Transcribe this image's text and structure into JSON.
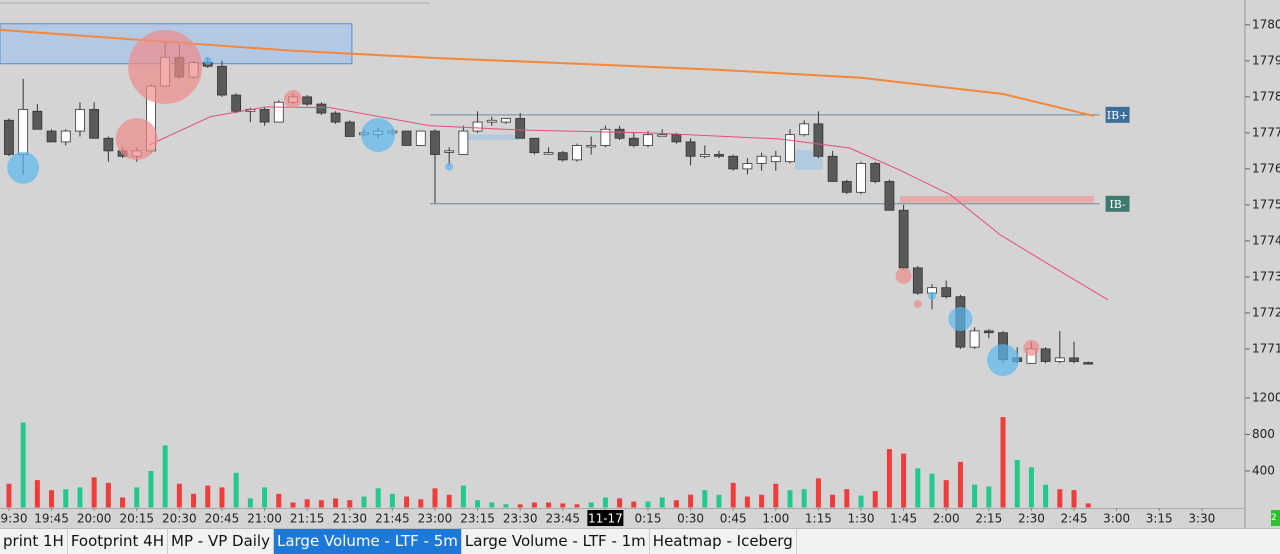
{
  "chart_data": [
    {
      "type": "candlestick",
      "xlim": [
        -0.63,
        87.04
      ],
      "xticks": [
        {
          "value": 0,
          "label": "9:30"
        },
        {
          "value": 3,
          "label": "19:45"
        },
        {
          "value": 6,
          "label": "20:00"
        },
        {
          "value": 9,
          "label": "20:15"
        },
        {
          "value": 12,
          "label": "20:30"
        },
        {
          "value": 15,
          "label": "20:45"
        },
        {
          "value": 18,
          "label": "21:00"
        },
        {
          "value": 21,
          "label": "21:15"
        },
        {
          "value": 24,
          "label": "21:30"
        },
        {
          "value": 27,
          "label": "21:45"
        },
        {
          "value": 30,
          "label": "23:00"
        },
        {
          "value": 33,
          "label": "23:15"
        },
        {
          "value": 36,
          "label": "23:30"
        },
        {
          "value": 39,
          "label": "23:45"
        },
        {
          "value": 42,
          "label": "11-17",
          "highlight": true
        },
        {
          "value": 45,
          "label": "0:15"
        },
        {
          "value": 48,
          "label": "0:30"
        },
        {
          "value": 51,
          "label": "0:45"
        },
        {
          "value": 54,
          "label": "1:00"
        },
        {
          "value": 57,
          "label": "1:15"
        },
        {
          "value": 60,
          "label": "1:30"
        },
        {
          "value": 63,
          "label": "1:45"
        },
        {
          "value": 66,
          "label": "2:00"
        },
        {
          "value": 69,
          "label": "2:15"
        },
        {
          "value": 72,
          "label": "2:30"
        },
        {
          "value": 75,
          "label": "2:45"
        },
        {
          "value": 78,
          "label": "3:00"
        },
        {
          "value": 81,
          "label": "3:15"
        },
        {
          "value": 84,
          "label": "3:30"
        }
      ],
      "ylim": [
        1770.22,
        1780.69
      ],
      "yticks": [
        {
          "value": 1780,
          "label": "1780."
        },
        {
          "value": 1779,
          "label": "1779."
        },
        {
          "value": 1778,
          "label": "1778."
        },
        {
          "value": 1777,
          "label": "1777."
        },
        {
          "value": 1776,
          "label": "1776."
        },
        {
          "value": 1775,
          "label": "1775."
        },
        {
          "value": 1774,
          "label": "1774."
        },
        {
          "value": 1773,
          "label": "1773."
        },
        {
          "value": 1772,
          "label": "1772."
        },
        {
          "value": 1771,
          "label": "1771."
        }
      ],
      "up_color": "#ffffff",
      "down_color": "#595959",
      "wick_color": "#333333",
      "open": [
        1777.35,
        1776.4,
        1777.6,
        1777.05,
        1776.75,
        1777.05,
        1777.65,
        1776.85,
        1776.5,
        1776.35,
        1776.5,
        1778.3,
        1779.1,
        1778.55,
        1778.95,
        1778.85,
        1778.05,
        1777.6,
        1777.65,
        1777.3,
        1777.85,
        1778.0,
        1777.8,
        1777.55,
        1777.3,
        1776.95,
        1776.95,
        1777.0,
        1777.05,
        1776.65,
        1777.05,
        1776.5,
        1776.4,
        1777.05,
        1777.3,
        1777.3,
        1777.4,
        1776.85,
        1776.45,
        1776.45,
        1776.25,
        1776.65,
        1776.65,
        1777.1,
        1776.85,
        1776.65,
        1776.95,
        1776.95,
        1776.75,
        1776.35,
        1776.4,
        1776.35,
        1776.0,
        1776.15,
        1776.2,
        1776.2,
        1776.95,
        1777.25,
        1776.35,
        1775.65,
        1775.35,
        1776.15,
        1775.65,
        1774.85,
        1773.25,
        1772.55,
        1772.7,
        1772.45,
        1771.05,
        1771.5,
        1771.45,
        1770.75,
        1770.6,
        1771.0,
        1770.65,
        1770.75,
        1770.62
      ],
      "high": [
        1777.4,
        1778.5,
        1777.8,
        1777.1,
        1777.1,
        1777.85,
        1777.85,
        1776.9,
        1776.6,
        1776.6,
        1778.35,
        1779.55,
        1779.45,
        1779.0,
        1779.1,
        1779.0,
        1778.1,
        1777.7,
        1777.7,
        1777.9,
        1778.1,
        1778.05,
        1777.85,
        1777.6,
        1777.35,
        1777.1,
        1777.15,
        1777.1,
        1777.05,
        1777.05,
        1777.1,
        1776.6,
        1777.2,
        1777.6,
        1777.45,
        1777.4,
        1777.55,
        1776.85,
        1776.6,
        1776.5,
        1776.7,
        1776.9,
        1777.2,
        1777.2,
        1777.0,
        1777.05,
        1777.1,
        1777.0,
        1776.85,
        1776.65,
        1776.5,
        1776.4,
        1776.3,
        1776.45,
        1776.5,
        1777.1,
        1777.35,
        1777.6,
        1776.5,
        1775.7,
        1776.2,
        1776.2,
        1775.7,
        1775.0,
        1773.3,
        1772.8,
        1772.9,
        1772.5,
        1771.6,
        1771.55,
        1771.5,
        1771.05,
        1771.2,
        1771.05,
        1771.5,
        1771.2,
        1770.65
      ],
      "low": [
        1776.35,
        1775.85,
        1777.1,
        1776.75,
        1776.65,
        1776.9,
        1776.85,
        1776.2,
        1776.3,
        1776.2,
        1776.45,
        1778.3,
        1778.5,
        1778.5,
        1778.8,
        1778.0,
        1777.55,
        1777.3,
        1777.2,
        1777.3,
        1777.8,
        1777.75,
        1777.5,
        1777.25,
        1776.9,
        1776.9,
        1776.85,
        1776.95,
        1776.65,
        1776.65,
        1775.05,
        1776.1,
        1776.4,
        1777.0,
        1777.2,
        1777.25,
        1776.85,
        1776.4,
        1776.4,
        1776.2,
        1776.2,
        1776.4,
        1776.6,
        1776.8,
        1776.6,
        1776.6,
        1776.9,
        1776.7,
        1776.1,
        1776.3,
        1776.3,
        1775.95,
        1775.85,
        1775.95,
        1775.95,
        1776.15,
        1776.9,
        1776.3,
        1775.65,
        1775.3,
        1775.3,
        1775.6,
        1774.85,
        1773.2,
        1772.5,
        1772.1,
        1772.4,
        1771.0,
        1771.0,
        1771.3,
        1770.6,
        1770.6,
        1770.6,
        1770.6,
        1770.6,
        1770.6,
        1770.58
      ],
      "close": [
        1776.4,
        1777.65,
        1777.1,
        1776.75,
        1777.05,
        1777.65,
        1776.85,
        1776.5,
        1776.35,
        1776.5,
        1778.3,
        1779.1,
        1778.55,
        1778.95,
        1778.85,
        1778.05,
        1777.6,
        1777.65,
        1777.3,
        1777.85,
        1778.0,
        1777.8,
        1777.55,
        1777.3,
        1776.9,
        1777.0,
        1777.05,
        1777.05,
        1776.65,
        1777.05,
        1776.4,
        1776.5,
        1777.05,
        1777.3,
        1777.35,
        1777.4,
        1776.85,
        1776.45,
        1776.45,
        1776.25,
        1776.65,
        1776.65,
        1777.1,
        1776.85,
        1776.65,
        1776.95,
        1776.95,
        1776.75,
        1776.35,
        1776.4,
        1776.35,
        1776.0,
        1776.15,
        1776.35,
        1776.35,
        1776.95,
        1777.25,
        1776.35,
        1775.65,
        1775.35,
        1776.15,
        1775.65,
        1774.85,
        1773.25,
        1772.55,
        1772.7,
        1772.45,
        1771.05,
        1771.5,
        1771.45,
        1770.7,
        1770.65,
        1771.0,
        1770.65,
        1770.75,
        1770.65,
        1770.6
      ],
      "moving_averages": [
        {
          "color": "#f5873b",
          "x": [
            -0.63,
            10,
            20,
            30,
            40,
            50,
            60,
            70,
            76.4
          ],
          "values": [
            1779.86,
            1779.56,
            1779.28,
            1779.08,
            1778.92,
            1778.75,
            1778.53,
            1778.08,
            1777.47
          ]
        },
        {
          "color": "#e0507a",
          "x": [
            9.9,
            14.2,
            18.1,
            22.6,
            29.6,
            36,
            45.1,
            54.3,
            59.2,
            62.7,
            66.3,
            69.8,
            73.3,
            77.4
          ],
          "values": [
            1776.67,
            1777.45,
            1777.72,
            1777.7,
            1777.2,
            1777.08,
            1777.0,
            1776.83,
            1776.58,
            1775.97,
            1775.28,
            1774.17,
            1773.33,
            1772.36
          ]
        }
      ],
      "bubbles": {
        "x": [
          1,
          9,
          11,
          14,
          20,
          26,
          31,
          63,
          64,
          65,
          67,
          70,
          72
        ],
        "values": [
          1776.03,
          1776.83,
          1778.83,
          1779.0,
          1777.94,
          1776.94,
          1776.06,
          1773.03,
          1772.25,
          1772.47,
          1771.83,
          1770.69,
          1771.03
        ],
        "sizes": [
          256,
          441,
          1369,
          16,
          81,
          289,
          16,
          64,
          16,
          16,
          144,
          256,
          64
        ],
        "colors": [
          "#5bb8f0",
          "#f08a8a",
          "#f08a8a",
          "#5bb8f0",
          "#f08a8a",
          "#5bb8f0",
          "#5bb8f0",
          "#f08a8a",
          "#f08a8a",
          "#5bb8f0",
          "#5bb8f0",
          "#5bb8f0",
          "#f08a8a"
        ]
      },
      "zones": [
        {
          "x": [
            -0.63,
            24.15
          ],
          "y": [
            1778.92,
            1780.03
          ],
          "color": "#aac6e6",
          "border": "#5b8fc9"
        },
        {
          "x": [
            32.2,
            36
          ],
          "y": [
            1776.8,
            1776.95
          ],
          "color": "#a9c8e0",
          "border": "none"
        },
        {
          "x": [
            55.35,
            57.3
          ],
          "y": [
            1775.97,
            1776.53
          ],
          "color": "#a9c8e0",
          "border": "none"
        },
        {
          "x": [
            62.75,
            76.4
          ],
          "y": [
            1775.06,
            1775.25
          ],
          "color": "#e8a0a0",
          "border": "none"
        }
      ],
      "levels": [
        {
          "value": 1777.5,
          "label": "IB+",
          "x": [
            29.65,
            76.8
          ],
          "color": "#3c6e9a"
        },
        {
          "value": 1775.03,
          "label": "IB-",
          "x": [
            29.65,
            76.8
          ],
          "color": "#3f7a72"
        }
      ]
    },
    {
      "type": "bar",
      "xlim": [
        -0.63,
        87.04
      ],
      "ylim": [
        0,
        1287
      ],
      "yticks": [
        400,
        800,
        1200
      ],
      "values": [
        260,
        930,
        300,
        190,
        200,
        220,
        330,
        270,
        110,
        220,
        400,
        680,
        260,
        150,
        240,
        220,
        380,
        100,
        220,
        150,
        55,
        90,
        80,
        100,
        80,
        120,
        210,
        150,
        120,
        90,
        210,
        140,
        240,
        80,
        55,
        35,
        35,
        55,
        55,
        45,
        35,
        55,
        110,
        100,
        65,
        65,
        110,
        80,
        140,
        190,
        140,
        270,
        120,
        140,
        260,
        190,
        200,
        320,
        140,
        200,
        130,
        180,
        640,
        590,
        430,
        370,
        300,
        500,
        250,
        230,
        990,
        520,
        440,
        250,
        200,
        190,
        45
      ],
      "colors": [
        "#f03c3c",
        "#22c98a",
        "#f03c3c",
        "#f03c3c",
        "#22c98a",
        "#22c98a",
        "#f03c3c",
        "#f03c3c",
        "#f03c3c",
        "#22c98a",
        "#22c98a",
        "#22c98a",
        "#f03c3c",
        "#f03c3c",
        "#f03c3c",
        "#f03c3c",
        "#22c98a",
        "#22c98a",
        "#22c98a",
        "#f03c3c",
        "#f03c3c",
        "#f03c3c",
        "#f03c3c",
        "#f03c3c",
        "#f03c3c",
        "#22c98a",
        "#22c98a",
        "#22c98a",
        "#f03c3c",
        "#f03c3c",
        "#f03c3c",
        "#f03c3c",
        "#22c98a",
        "#22c98a",
        "#22c98a",
        "#22c98a",
        "#f03c3c",
        "#f03c3c",
        "#f03c3c",
        "#f03c3c",
        "#f03c3c",
        "#22c98a",
        "#22c98a",
        "#f03c3c",
        "#f03c3c",
        "#22c98a",
        "#22c98a",
        "#f03c3c",
        "#f03c3c",
        "#22c98a",
        "#22c98a",
        "#f03c3c",
        "#f03c3c",
        "#f03c3c",
        "#f03c3c",
        "#22c98a",
        "#22c98a",
        "#f03c3c",
        "#f03c3c",
        "#f03c3c",
        "#22c98a",
        "#f03c3c",
        "#f03c3c",
        "#f03c3c",
        "#22c98a",
        "#22c98a",
        "#f03c3c",
        "#f03c3c",
        "#22c98a",
        "#22c98a",
        "#f03c3c",
        "#22c98a",
        "#22c98a",
        "#22c98a",
        "#f03c3c",
        "#f03c3c",
        "#f03c3c"
      ]
    }
  ],
  "tabs": [
    "print 1H",
    "Footprint 4H",
    "MP - VP Daily",
    "Large Volume - LTF - 5m",
    "Large Volume - LTF - 1m",
    "Heatmap - Iceberg"
  ],
  "active_tab": 3,
  "status_badge": "2"
}
